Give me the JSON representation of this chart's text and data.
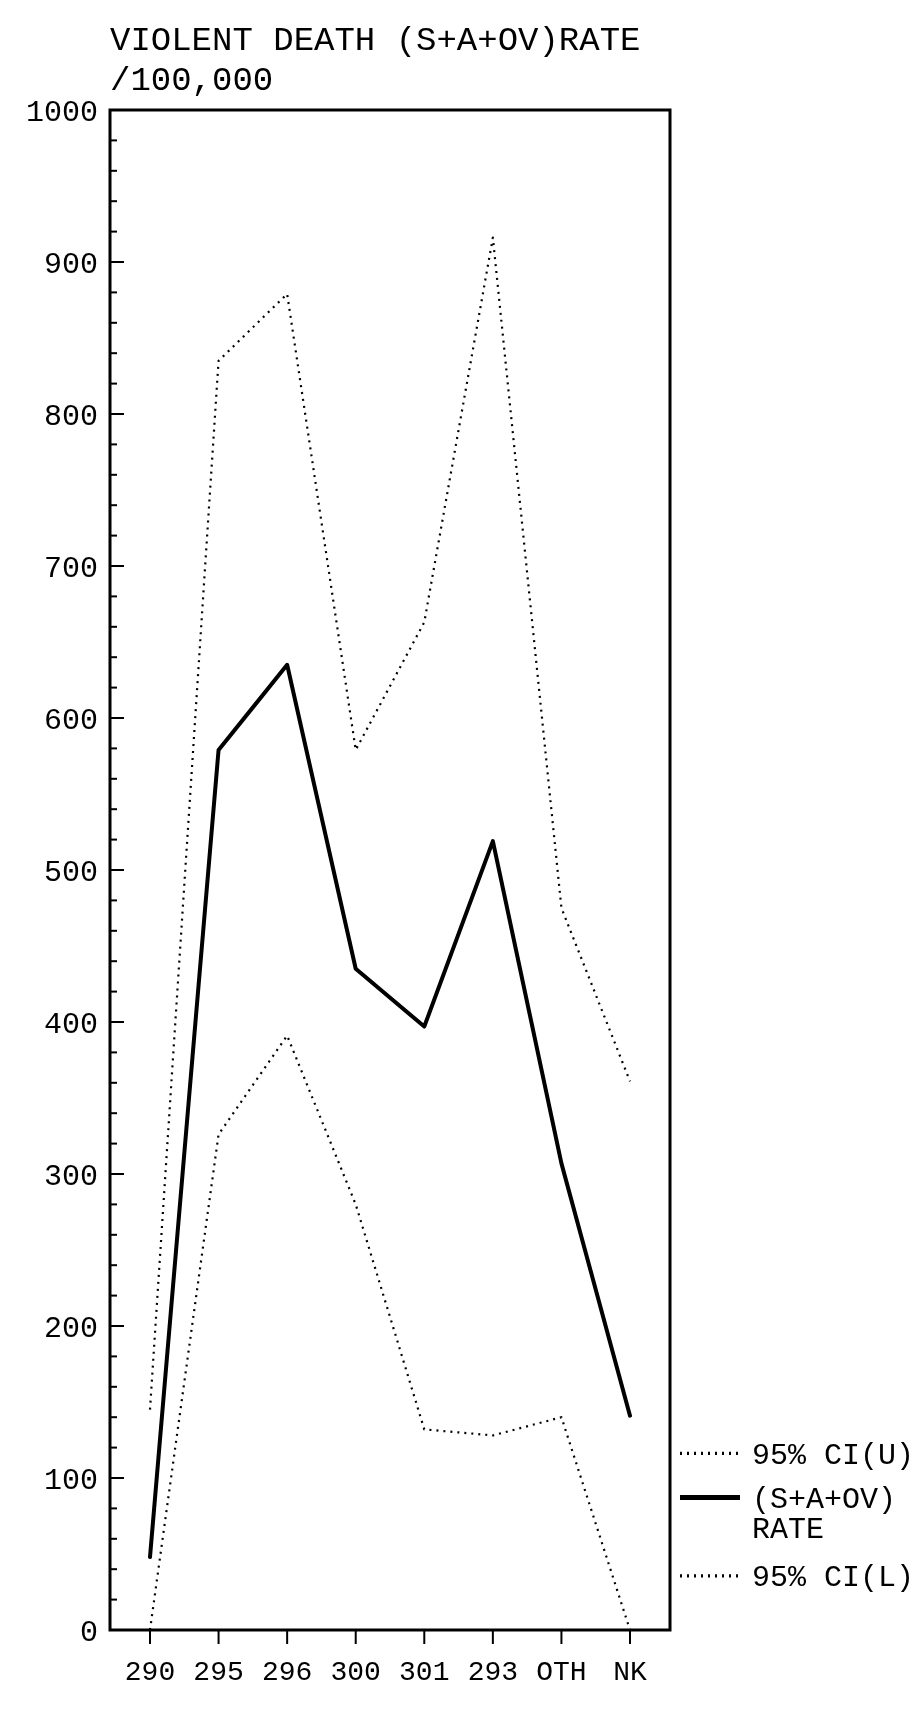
{
  "chart_data": {
    "type": "line",
    "title": "VIOLENT DEATH (S+A+OV)RATE",
    "ylabel": "/100,000",
    "categories": [
      "290",
      "295",
      "296",
      "300",
      "301",
      "293",
      "OTH",
      "NK"
    ],
    "series": [
      {
        "name": "95% CI(U)",
        "color": "#000000",
        "line_style": "dotted",
        "values": [
          145,
          835,
          879,
          579,
          663,
          916,
          475,
          361
        ]
      },
      {
        "name": "(S+A+OV) RATE",
        "color": "#000000",
        "line_style": "solid",
        "values": [
          48,
          579,
          635,
          435,
          397,
          519,
          307,
          141
        ]
      },
      {
        "name": "95% CI(L)",
        "color": "#000000",
        "line_style": "dotted",
        "values": [
          0,
          326,
          391,
          280,
          132,
          128,
          140,
          0
        ]
      }
    ],
    "ylim": [
      0,
      1000
    ],
    "yticks": [
      0,
      {
        "value": 20,
        "label": null
      },
      {
        "value": 40,
        "label": null
      },
      {
        "value": 60,
        "label": null
      },
      {
        "value": 80,
        "label": null
      },
      100,
      {
        "value": 120,
        "label": null
      },
      {
        "value": 140,
        "label": null
      },
      {
        "value": 160,
        "label": null
      },
      {
        "value": 180,
        "label": null
      },
      200,
      {
        "value": 220,
        "label": null
      },
      {
        "value": 240,
        "label": null
      },
      {
        "value": 260,
        "label": null
      },
      {
        "value": 280,
        "label": null
      },
      300,
      {
        "value": 320,
        "label": null
      },
      {
        "value": 340,
        "label": null
      },
      {
        "value": 360,
        "label": null
      },
      {
        "value": 380,
        "label": null
      },
      400,
      {
        "value": 420,
        "label": null
      },
      {
        "value": 440,
        "label": null
      },
      {
        "value": 460,
        "label": null
      },
      {
        "value": 480,
        "label": null
      },
      500,
      {
        "value": 520,
        "label": null
      },
      {
        "value": 540,
        "label": null
      },
      {
        "value": 560,
        "label": null
      },
      {
        "value": 580,
        "label": null
      },
      600,
      {
        "value": 620,
        "label": null
      },
      {
        "value": 640,
        "label": null
      },
      {
        "value": 660,
        "label": null
      },
      {
        "value": 680,
        "label": null
      },
      700,
      {
        "value": 720,
        "label": null
      },
      {
        "value": 740,
        "label": null
      },
      {
        "value": 760,
        "label": null
      },
      {
        "value": 780,
        "label": null
      },
      800,
      {
        "value": 820,
        "label": null
      },
      {
        "value": 840,
        "label": null
      },
      {
        "value": 860,
        "label": null
      },
      {
        "value": 880,
        "label": null
      },
      900,
      {
        "value": 920,
        "label": null
      },
      {
        "value": 940,
        "label": null
      },
      {
        "value": 960,
        "label": null
      },
      {
        "value": 980,
        "label": null
      },
      1000
    ],
    "grid": false,
    "legend": "right",
    "marker": "none"
  }
}
